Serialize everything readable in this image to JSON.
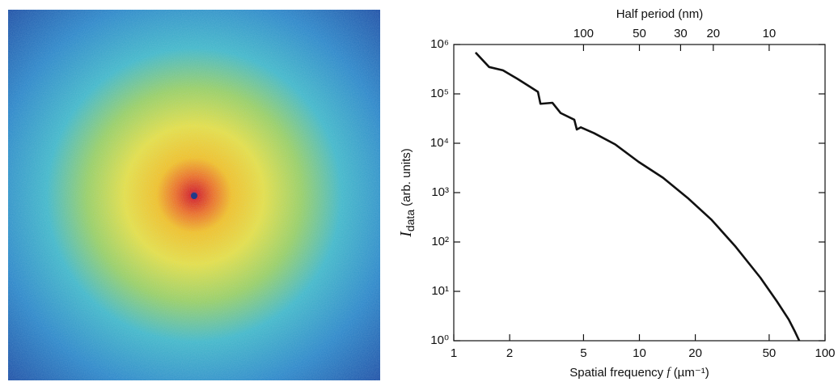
{
  "chart_data": {
    "type": "line",
    "x_label": {
      "text": "Spatial frequency",
      "symbol": "f",
      "units": "(µm⁻¹)"
    },
    "y_label": {
      "symbol": "I",
      "subscript": "data",
      "units": "(arb. units)"
    },
    "x2_label": "Half period (nm)",
    "log_x": true,
    "log_y": true,
    "xlim": [
      1,
      100
    ],
    "xticks": [
      1,
      2,
      5,
      10,
      20,
      50,
      100
    ],
    "x2lim": [
      500,
      5
    ],
    "x2ticks": [
      100,
      50,
      30,
      20,
      10
    ],
    "ylim": [
      1,
      1000000
    ],
    "yticks": [
      {
        "value": 1,
        "label": "10⁰"
      },
      {
        "value": 10,
        "label": "10¹"
      },
      {
        "value": 100,
        "label": "10²"
      },
      {
        "value": 1000,
        "label": "10³"
      },
      {
        "value": 10000,
        "label": "10⁴"
      },
      {
        "value": 100000,
        "label": "10⁵"
      },
      {
        "value": 1000000,
        "label": "10⁶"
      }
    ],
    "color": "#111111",
    "x": [
      1.31,
      1.55,
      1.84,
      2.21,
      2.57,
      2.84,
      2.93,
      3.4,
      3.76,
      4.46,
      4.6,
      4.83,
      5.7,
      7.4,
      9.9,
      13.4,
      18.2,
      24.5,
      33,
      44.8,
      55,
      63.7,
      69,
      72.6
    ],
    "values": [
      690000,
      350000,
      300000,
      200000,
      140000,
      110000,
      63000,
      66000,
      41000,
      30000,
      19000,
      21000,
      16000,
      9500,
      4200,
      2000,
      780,
      280,
      80,
      19,
      6.3,
      2.7,
      1.5,
      1
    ]
  }
}
